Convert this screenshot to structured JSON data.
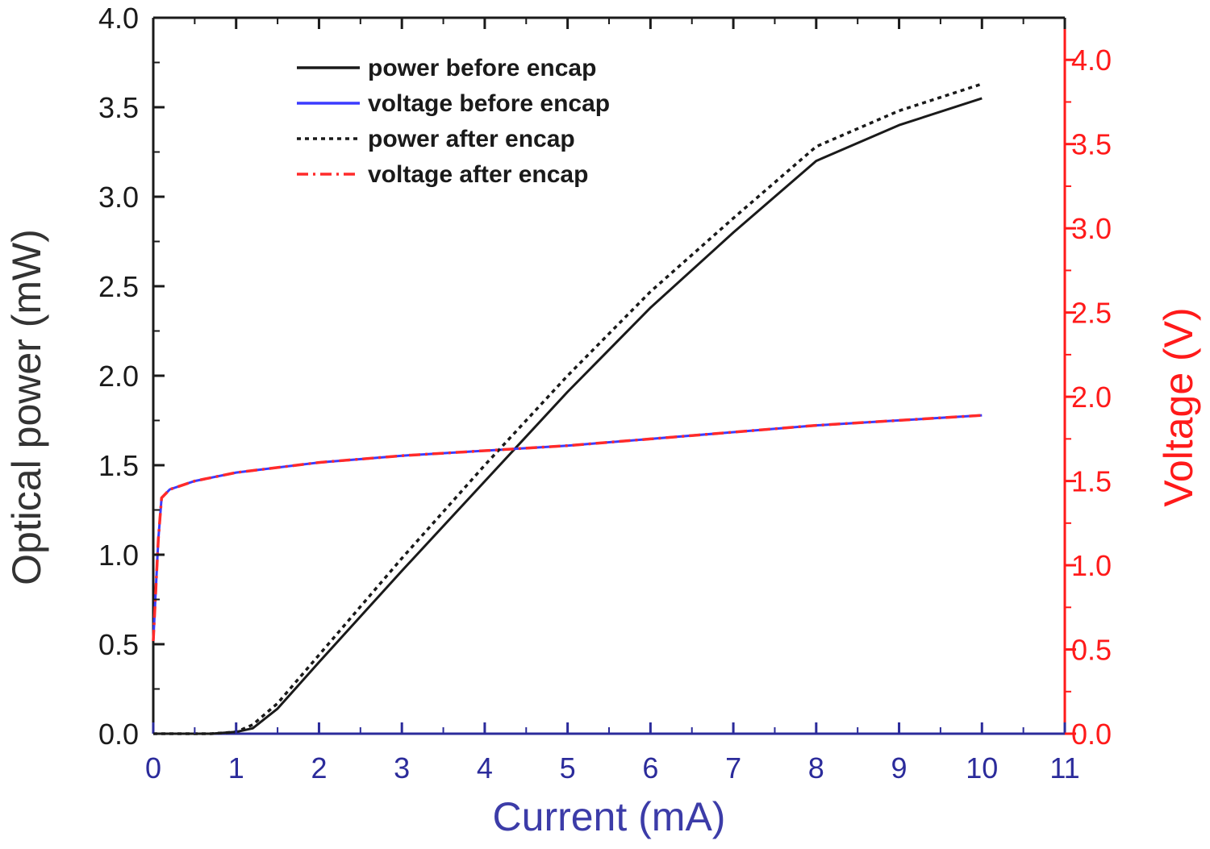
{
  "chart_data": {
    "type": "line",
    "xlabel": "Current (mA)",
    "ylabel": "Optical power (mW)",
    "y2label": "Voltage (V)",
    "xlim": [
      0,
      11
    ],
    "ylim": [
      0,
      4.0
    ],
    "y2lim": [
      0,
      4.25
    ],
    "x_ticks": [
      "0",
      "1",
      "2",
      "3",
      "4",
      "5",
      "6",
      "7",
      "8",
      "9",
      "10",
      "11"
    ],
    "y_ticks": [
      "0.0",
      "0.5",
      "1.0",
      "1.5",
      "2.0",
      "2.5",
      "3.0",
      "3.5",
      "4.0"
    ],
    "y2_ticks": [
      "0.0",
      "0.5",
      "1.0",
      "1.5",
      "2.0",
      "2.5",
      "3.0",
      "3.5",
      "4.0"
    ],
    "legend_position": "top-left",
    "grid": false,
    "colors": {
      "power": "#1a1a1a",
      "voltage_before": "#3b3bff",
      "voltage_after": "#ff2a2a",
      "left_axis": "#1a1a1a",
      "right_axis": "#ff1a1a",
      "x_axis": "#2b2b9b"
    },
    "series": [
      {
        "name": "power before encap",
        "axis": "left",
        "style": "solid",
        "color": "#1a1a1a",
        "points": [
          [
            0,
            0
          ],
          [
            0.7,
            0
          ],
          [
            1.0,
            0.01
          ],
          [
            1.2,
            0.03
          ],
          [
            1.5,
            0.14
          ],
          [
            2,
            0.4
          ],
          [
            3,
            0.91
          ],
          [
            4,
            1.41
          ],
          [
            5,
            1.91
          ],
          [
            6,
            2.38
          ],
          [
            7,
            2.8
          ],
          [
            8,
            3.2
          ],
          [
            9,
            3.4
          ],
          [
            10,
            3.55
          ]
        ]
      },
      {
        "name": "voltage before encap",
        "axis": "right",
        "style": "solid",
        "color": "#3b3bff",
        "points": [
          [
            0,
            0.55
          ],
          [
            0.03,
            0.85
          ],
          [
            0.06,
            1.15
          ],
          [
            0.1,
            1.4
          ],
          [
            0.2,
            1.45
          ],
          [
            0.5,
            1.5
          ],
          [
            1,
            1.55
          ],
          [
            2,
            1.61
          ],
          [
            3,
            1.65
          ],
          [
            4,
            1.68
          ],
          [
            5,
            1.71
          ],
          [
            6,
            1.75
          ],
          [
            7,
            1.79
          ],
          [
            8,
            1.83
          ],
          [
            9,
            1.86
          ],
          [
            10,
            1.89
          ]
        ]
      },
      {
        "name": "power after encap",
        "axis": "left",
        "style": "dotted",
        "color": "#1a1a1a",
        "points": [
          [
            0,
            0
          ],
          [
            0.7,
            0
          ],
          [
            1.0,
            0.01
          ],
          [
            1.2,
            0.05
          ],
          [
            1.5,
            0.17
          ],
          [
            2,
            0.44
          ],
          [
            3,
            0.98
          ],
          [
            4,
            1.5
          ],
          [
            5,
            2.0
          ],
          [
            6,
            2.47
          ],
          [
            7,
            2.88
          ],
          [
            8,
            3.28
          ],
          [
            9,
            3.48
          ],
          [
            10,
            3.63
          ]
        ]
      },
      {
        "name": "voltage after encap",
        "axis": "right",
        "style": "dashdot",
        "color": "#ff2a2a",
        "points": [
          [
            0,
            0.55
          ],
          [
            0.03,
            0.85
          ],
          [
            0.06,
            1.15
          ],
          [
            0.1,
            1.4
          ],
          [
            0.2,
            1.45
          ],
          [
            0.5,
            1.5
          ],
          [
            1,
            1.55
          ],
          [
            2,
            1.61
          ],
          [
            3,
            1.65
          ],
          [
            4,
            1.68
          ],
          [
            5,
            1.71
          ],
          [
            6,
            1.75
          ],
          [
            7,
            1.79
          ],
          [
            8,
            1.83
          ],
          [
            9,
            1.86
          ],
          [
            10,
            1.89
          ]
        ]
      }
    ]
  }
}
